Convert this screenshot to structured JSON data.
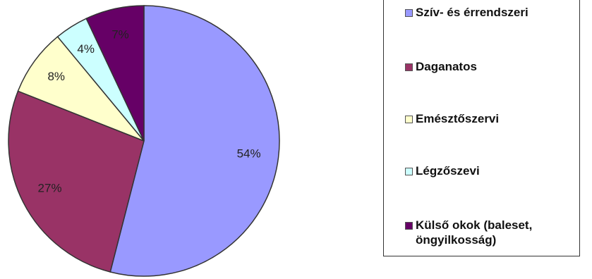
{
  "chart_data": {
    "type": "pie",
    "title": "",
    "slices": [
      {
        "label": "Szív- és érrendszeri",
        "value": 54,
        "value_label": "54%",
        "color": "#9999FF"
      },
      {
        "label": "Daganatos",
        "value": 27,
        "value_label": "27%",
        "color": "#993366"
      },
      {
        "label": "Emésztőszervi",
        "value": 8,
        "value_label": "8%",
        "color": "#FFFFCC"
      },
      {
        "label": "Légzőszevi",
        "value": 4,
        "value_label": "4%",
        "color": "#CCFFFF"
      },
      {
        "label": "Külső okok (baleset, öngyilkosság)",
        "value": 7,
        "value_label": "7%",
        "color": "#660066"
      }
    ],
    "legend_position": "right"
  }
}
